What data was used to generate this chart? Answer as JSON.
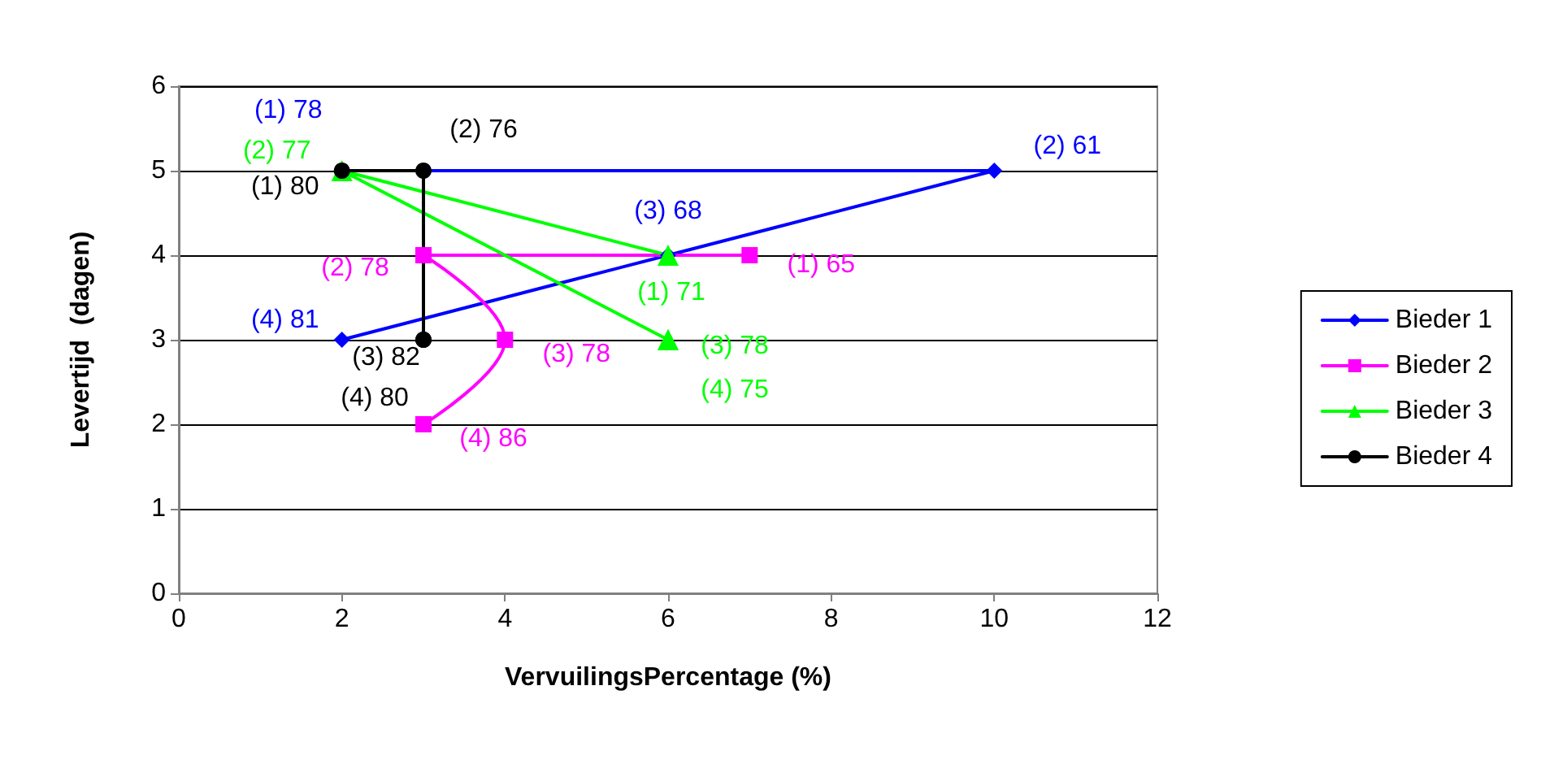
{
  "chart_data": {
    "type": "line",
    "xlabel": "VervuilingsPercentage (%)",
    "ylabel": "Levertijd  (dagen)",
    "xlim": [
      0,
      12
    ],
    "xticks": [
      0,
      2,
      4,
      6,
      8,
      10,
      12
    ],
    "ylim": [
      0,
      6
    ],
    "yticks": [
      0,
      1,
      2,
      3,
      4,
      5,
      6
    ],
    "grid": "y",
    "legend": "right",
    "line_style": "solid",
    "series": [
      {
        "name": "Bieder 1",
        "color": "#0000ff",
        "marker": "diamond",
        "x": [
          2,
          10,
          6,
          2
        ],
        "values": [
          5,
          5,
          4,
          3
        ],
        "value_labels": [
          "(1) 78",
          "(2) 61",
          "(3) 68",
          "(4) 81"
        ]
      },
      {
        "name": "Bieder 2",
        "color": "#ff00ff",
        "marker": "square",
        "x": [
          7,
          3,
          4,
          3
        ],
        "values": [
          4,
          4,
          3,
          2
        ],
        "value_labels": [
          "(1) 65",
          "(2) 78",
          "(3) 78",
          "(4) 86"
        ]
      },
      {
        "name": "Bieder 3",
        "color": "#00ff00",
        "marker": "triangle",
        "x": [
          6,
          2,
          6,
          6
        ],
        "values": [
          4,
          5,
          3,
          3
        ],
        "value_labels": [
          "(1) 71",
          "(2) 77",
          "(3) 78",
          "(4) 75"
        ]
      },
      {
        "name": "Bieder 4",
        "color": "#000000",
        "marker": "circle",
        "x": [
          2,
          3,
          3,
          3
        ],
        "values": [
          5,
          5,
          3,
          3
        ],
        "value_labels": [
          "(1) 80",
          "(2) 76",
          "(3) 82",
          "(4) 80"
        ]
      }
    ]
  }
}
